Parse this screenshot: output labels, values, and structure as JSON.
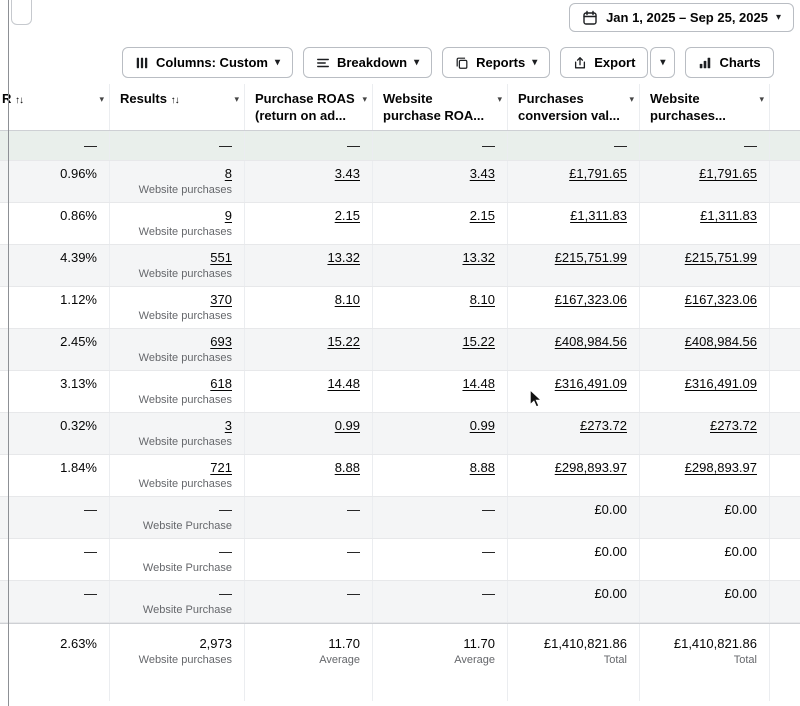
{
  "date_range": {
    "label": "Jan 1, 2025 – Sep 25, 2025"
  },
  "toolbar": {
    "columns_label": "Columns: Custom",
    "breakdown_label": "Breakdown",
    "reports_label": "Reports",
    "export_label": "Export",
    "charts_label": "Charts"
  },
  "icons": {
    "caret": "▾",
    "sort": "↑↓"
  },
  "table": {
    "headers": [
      {
        "line1": "R",
        "sort": true
      },
      {
        "line1": "Results",
        "sort": true
      },
      {
        "line1": "Purchase ROAS",
        "line2": "(return on ad..."
      },
      {
        "line1": "Website",
        "line2": "purchase ROA..."
      },
      {
        "line1": "Purchases",
        "line2": "conversion val..."
      },
      {
        "line1": "Website",
        "line2": "purchases..."
      }
    ],
    "rows": [
      {
        "cells": [
          "—",
          "—",
          "—",
          "—",
          "—",
          "—"
        ],
        "sub": "",
        "highlight": true,
        "underline": false
      },
      {
        "cells": [
          "0.96%",
          "8",
          "3.43",
          "3.43",
          "£1,791.65",
          "£1,791.65"
        ],
        "sub": "Website purchases",
        "underline": true
      },
      {
        "cells": [
          "0.86%",
          "9",
          "2.15",
          "2.15",
          "£1,311.83",
          "£1,311.83"
        ],
        "sub": "Website purchases",
        "underline": true
      },
      {
        "cells": [
          "4.39%",
          "551",
          "13.32",
          "13.32",
          "£215,751.99",
          "£215,751.99"
        ],
        "sub": "Website purchases",
        "underline": true
      },
      {
        "cells": [
          "1.12%",
          "370",
          "8.10",
          "8.10",
          "£167,323.06",
          "£167,323.06"
        ],
        "sub": "Website purchases",
        "underline": true
      },
      {
        "cells": [
          "2.45%",
          "693",
          "15.22",
          "15.22",
          "£408,984.56",
          "£408,984.56"
        ],
        "sub": "Website purchases",
        "underline": true
      },
      {
        "cells": [
          "3.13%",
          "618",
          "14.48",
          "14.48",
          "£316,491.09",
          "£316,491.09"
        ],
        "sub": "Website purchases",
        "underline": true
      },
      {
        "cells": [
          "0.32%",
          "3",
          "0.99",
          "0.99",
          "£273.72",
          "£273.72"
        ],
        "sub": "Website purchases",
        "underline": true
      },
      {
        "cells": [
          "1.84%",
          "721",
          "8.88",
          "8.88",
          "£298,893.97",
          "£298,893.97"
        ],
        "sub": "Website purchases",
        "underline": true
      },
      {
        "cells": [
          "—",
          "—",
          "—",
          "—",
          "£0.00",
          "£0.00"
        ],
        "sub": "Website Purchase",
        "underline": false
      },
      {
        "cells": [
          "—",
          "—",
          "—",
          "—",
          "£0.00",
          "£0.00"
        ],
        "sub": "Website Purchase",
        "underline": false
      },
      {
        "cells": [
          "—",
          "—",
          "—",
          "—",
          "£0.00",
          "£0.00"
        ],
        "sub": "Website Purchase",
        "underline": false
      }
    ],
    "total": {
      "cells": [
        "2.63%",
        "2,973",
        "11.70",
        "11.70",
        "£1,410,821.86",
        "£1,410,821.86"
      ],
      "subs": [
        "",
        "Website purchases",
        "Average",
        "Average",
        "Total",
        "Total"
      ]
    }
  }
}
